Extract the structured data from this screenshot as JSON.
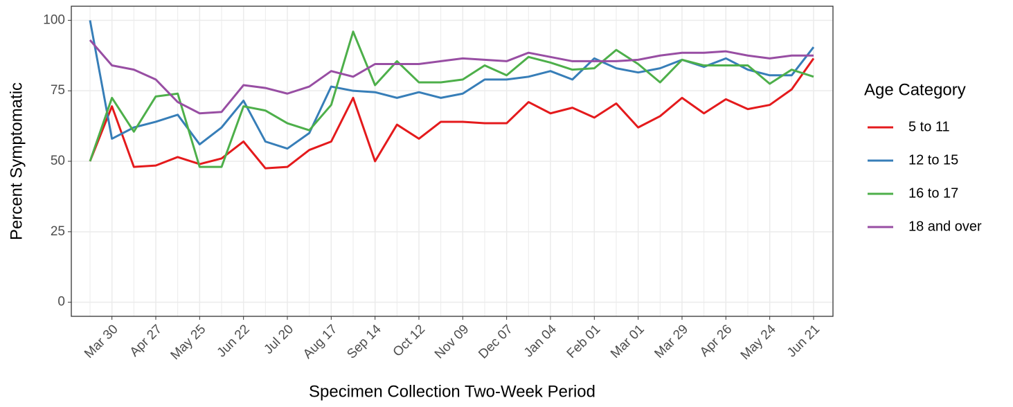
{
  "chart_data": {
    "type": "line",
    "x_label": "Specimen Collection Two-Week Period",
    "y_label": "Percent Symptomatic",
    "legend_title": "Age Category",
    "legend_position": "right",
    "grid": true,
    "categories": [
      null,
      "Mar 30",
      null,
      "Apr 27",
      null,
      "May 25",
      null,
      "Jun 22",
      null,
      "Jul 20",
      null,
      "Aug 17",
      null,
      "Sep 14",
      null,
      "Oct 12",
      null,
      "Nov 09",
      null,
      "Dec 07",
      null,
      "Jan 04",
      null,
      "Feb 01",
      null,
      "Mar 01",
      null,
      "Mar 29",
      null,
      "Apr 26",
      null,
      "May 24",
      null,
      "Jun 21"
    ],
    "ylim": [
      -5,
      105
    ],
    "yticks": [
      0,
      25,
      50,
      75,
      100
    ],
    "series": [
      {
        "name": "5 to 11",
        "color": "#e41a1c",
        "values": [
          50,
          69.5,
          48,
          48.5,
          51.5,
          49,
          51,
          57,
          47.5,
          48,
          54,
          57,
          72.5,
          50,
          63,
          58,
          64,
          64,
          63.5,
          63.5,
          71,
          67,
          69,
          65.5,
          70.5,
          62,
          66,
          72.5,
          67,
          72,
          68.5,
          70,
          75.5,
          86.5
        ]
      },
      {
        "name": "12 to 15",
        "color": "#377eb8",
        "values": [
          100,
          58,
          62,
          64,
          66.5,
          56,
          62,
          71.5,
          57,
          54.5,
          60,
          76.5,
          75,
          74.5,
          72.5,
          74.5,
          72.5,
          74,
          79,
          79,
          80,
          82,
          79,
          86.5,
          83,
          81.5,
          83,
          86,
          83.5,
          86.5,
          82.5,
          80.5,
          80.5,
          90.5
        ]
      },
      {
        "name": "16 to 17",
        "color": "#4daf4a",
        "values": [
          50,
          72.5,
          60.5,
          73,
          74,
          48,
          48,
          69.5,
          68,
          63.5,
          61,
          70,
          96,
          77,
          85.5,
          78,
          78,
          79,
          84,
          80.5,
          87,
          85,
          82.5,
          83,
          89.5,
          84.5,
          78,
          86,
          84,
          84,
          84,
          77.5,
          82.5,
          80
        ]
      },
      {
        "name": "18 and over",
        "color": "#984ea3",
        "values": [
          93,
          84,
          82.5,
          79,
          71,
          67,
          67.5,
          77,
          76,
          74,
          76.5,
          82,
          80,
          84.5,
          84.5,
          84.5,
          85.5,
          86.5,
          86,
          85.5,
          88.5,
          87,
          85.5,
          85.5,
          85.5,
          86,
          87.5,
          88.5,
          88.5,
          89,
          87.5,
          86.5,
          87.5,
          87.5
        ]
      }
    ]
  }
}
